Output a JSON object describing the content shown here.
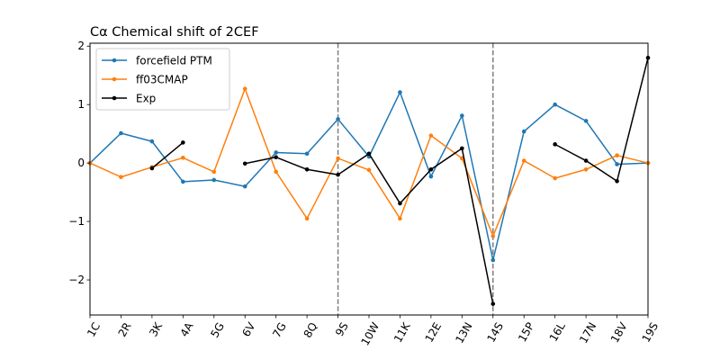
{
  "chart_data": {
    "type": "line",
    "title": "Cα Chemical shift of 2CEF",
    "xlabel": "",
    "ylabel": "",
    "categories": [
      "1C",
      "2R",
      "3K",
      "4A",
      "5G",
      "6V",
      "7G",
      "8Q",
      "9S",
      "10W",
      "11K",
      "12E",
      "13N",
      "14S",
      "15P",
      "16L",
      "17N",
      "18V",
      "19S"
    ],
    "ylim": [
      -2.6,
      2.05
    ],
    "yticks": [
      -2,
      -1,
      0,
      1,
      2
    ],
    "grid": false,
    "legend_position": "top-left",
    "vertical_markers": [
      "9S",
      "14S"
    ],
    "series": [
      {
        "name": "forcefield PTM",
        "color": "#1f77b4",
        "values": [
          0.0,
          0.51,
          0.37,
          -0.32,
          -0.29,
          -0.4,
          0.18,
          0.16,
          0.75,
          0.11,
          1.21,
          -0.23,
          0.81,
          -1.66,
          0.54,
          1.0,
          0.72,
          -0.02,
          0.0
        ]
      },
      {
        "name": "ff03CMAP",
        "color": "#ff7f0e",
        "values": [
          0.0,
          -0.24,
          -0.07,
          0.09,
          -0.15,
          1.27,
          -0.15,
          -0.95,
          0.08,
          -0.12,
          -0.95,
          0.47,
          0.08,
          -1.25,
          0.04,
          -0.26,
          -0.11,
          0.13,
          0.0
        ]
      },
      {
        "name": "Exp",
        "color": "#000000",
        "values": [
          null,
          null,
          -0.09,
          0.35,
          null,
          -0.01,
          0.1,
          -0.11,
          -0.2,
          0.16,
          -0.69,
          -0.11,
          0.25,
          -2.41,
          null,
          0.32,
          0.04,
          -0.31,
          1.8
        ]
      }
    ]
  }
}
